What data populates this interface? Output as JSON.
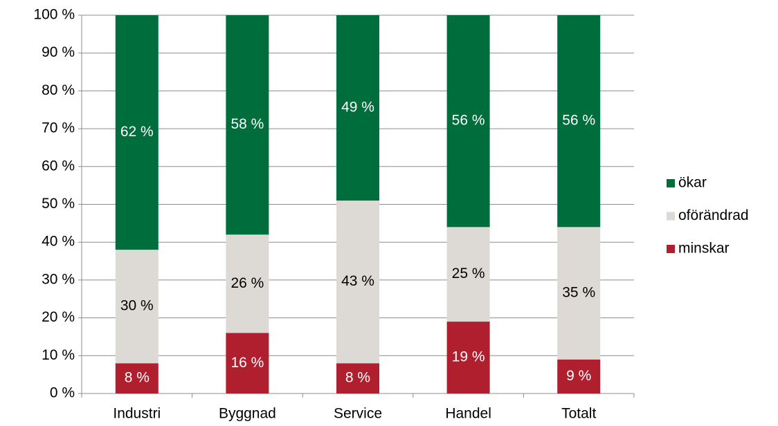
{
  "chart_data": {
    "type": "stacked_bar",
    "categories": [
      "Industri",
      "Byggnad",
      "Service",
      "Handel",
      "Totalt"
    ],
    "series": [
      {
        "name": "minskar",
        "color": "#b01f2e",
        "values": [
          8,
          16,
          8,
          19,
          9
        ],
        "value_labels": [
          "8 %",
          "16 %",
          "8 %",
          "19 %",
          "9 %"
        ]
      },
      {
        "name": "oförändrad",
        "color": "#ddd9d4",
        "values": [
          30,
          26,
          43,
          25,
          35
        ],
        "value_labels": [
          "30 %",
          "26 %",
          "43 %",
          "25 %",
          "35 %"
        ]
      },
      {
        "name": "ökar",
        "color": "#006e3c",
        "values": [
          62,
          58,
          49,
          56,
          56
        ],
        "value_labels": [
          "62 %",
          "58 %",
          "49 %",
          "56 %",
          "56 %"
        ]
      }
    ],
    "ylim": [
      0,
      100
    ],
    "yticks": [
      {
        "value": 0,
        "label": "0 %"
      },
      {
        "value": 10,
        "label": "10 %"
      },
      {
        "value": 20,
        "label": "20 %"
      },
      {
        "value": 30,
        "label": "30 %"
      },
      {
        "value": 40,
        "label": "40 %"
      },
      {
        "value": 50,
        "label": "50 %"
      },
      {
        "value": 60,
        "label": "60 %"
      },
      {
        "value": 70,
        "label": "70 %"
      },
      {
        "value": 80,
        "label": "80 %"
      },
      {
        "value": 90,
        "label": "90 %"
      },
      {
        "value": 100,
        "label": "100 %"
      }
    ],
    "grid": true,
    "legend": "right"
  }
}
